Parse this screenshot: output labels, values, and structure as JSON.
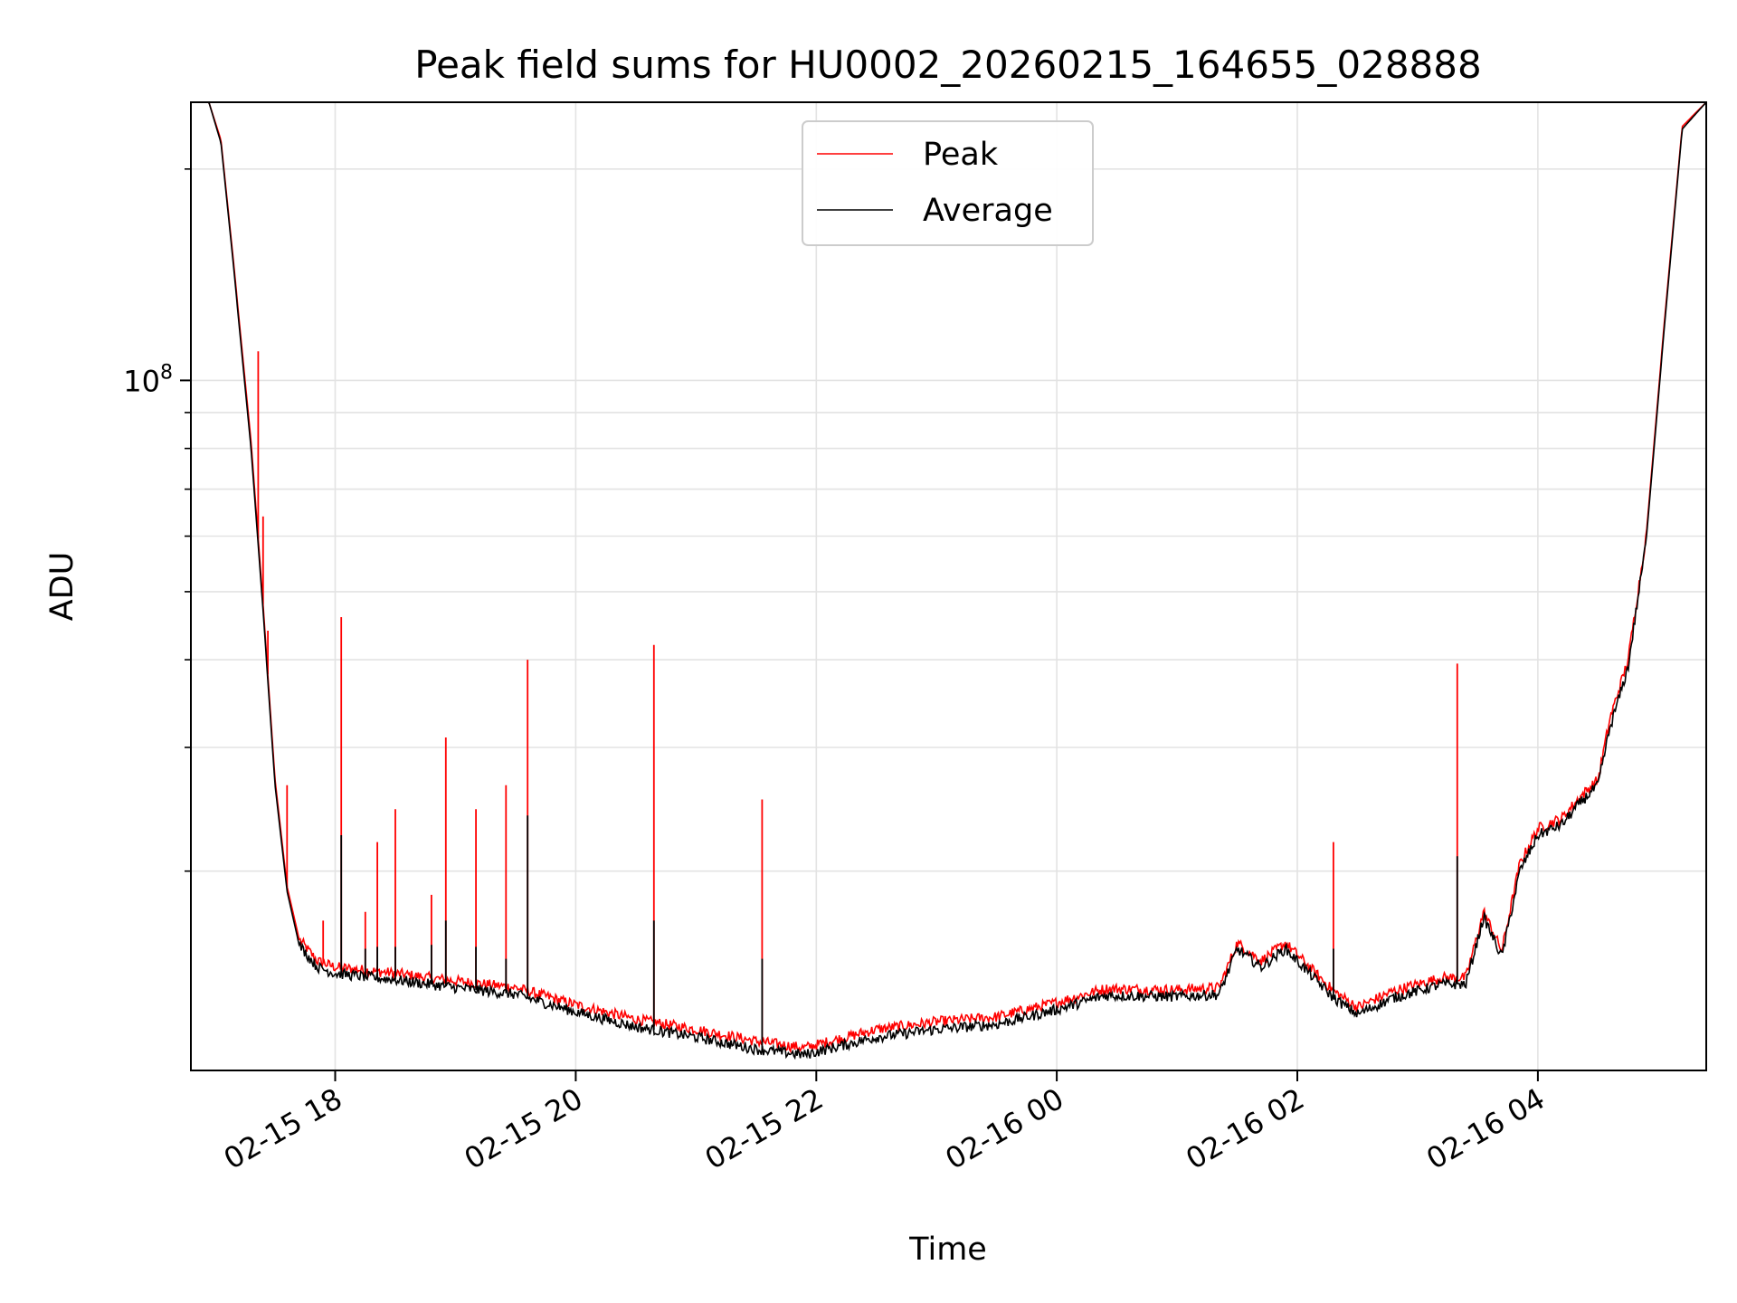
{
  "chart_data": {
    "type": "line",
    "title": "Peak field sums for HU0002_20260215_164655_028888",
    "xlabel": "Time",
    "ylabel": "ADU",
    "yscale": "log",
    "x_units": "hours since 2026-02-15 00:00",
    "xlim": [
      16.8,
      29.4
    ],
    "ylim": [
      10400000,
      249000000
    ],
    "ytick_major": [
      {
        "value": 100000000,
        "base": "10",
        "exp": "8"
      }
    ],
    "ytick_minor": [
      20000000,
      30000000,
      40000000,
      50000000,
      60000000,
      70000000,
      80000000,
      90000000,
      200000000
    ],
    "xticks": [
      {
        "value": 18,
        "label": "02-15 18"
      },
      {
        "value": 20,
        "label": "02-15 20"
      },
      {
        "value": 22,
        "label": "02-15 22"
      },
      {
        "value": 24,
        "label": "02-16 00"
      },
      {
        "value": 26,
        "label": "02-16 02"
      },
      {
        "value": 28,
        "label": "02-16 04"
      }
    ],
    "grid": true,
    "legend": {
      "position": "top-center"
    },
    "series": [
      {
        "name": "Peak",
        "color": "#ff0000",
        "baseline": [
          [
            16.8,
            249000000
          ],
          [
            16.95,
            249000000
          ],
          [
            17.05,
            220000000
          ],
          [
            17.15,
            150000000
          ],
          [
            17.3,
            82000000
          ],
          [
            17.4,
            48000000
          ],
          [
            17.5,
            27000000
          ],
          [
            17.6,
            19000000
          ],
          [
            17.7,
            16000000
          ],
          [
            17.85,
            14900000
          ],
          [
            18.0,
            14600000
          ],
          [
            18.5,
            14300000
          ],
          [
            19.0,
            13950000
          ],
          [
            19.5,
            13650000
          ],
          [
            20.0,
            12900000
          ],
          [
            20.5,
            12300000
          ],
          [
            21.0,
            11900000
          ],
          [
            21.5,
            11450000
          ],
          [
            21.9,
            11200000
          ],
          [
            22.5,
            11900000
          ],
          [
            23.0,
            12200000
          ],
          [
            23.5,
            12400000
          ],
          [
            24.0,
            13000000
          ],
          [
            24.4,
            13600000
          ],
          [
            25.0,
            13550000
          ],
          [
            25.35,
            13650000
          ],
          [
            25.5,
            15800000
          ],
          [
            25.7,
            14900000
          ],
          [
            25.9,
            15800000
          ],
          [
            26.05,
            14900000
          ],
          [
            26.3,
            13500000
          ],
          [
            26.5,
            12800000
          ],
          [
            26.8,
            13500000
          ],
          [
            27.2,
            14100000
          ],
          [
            27.4,
            14100000
          ],
          [
            27.55,
            17500000
          ],
          [
            27.7,
            15400000
          ],
          [
            27.85,
            20500000
          ],
          [
            28.0,
            23000000
          ],
          [
            28.2,
            23800000
          ],
          [
            28.35,
            25500000
          ],
          [
            28.5,
            27000000
          ],
          [
            28.6,
            33000000
          ],
          [
            28.75,
            40000000
          ],
          [
            28.9,
            60000000
          ],
          [
            29.05,
            120000000
          ],
          [
            29.2,
            230000000
          ],
          [
            29.4,
            249000000
          ]
        ],
        "spikes": [
          [
            17.36,
            110000000
          ],
          [
            17.4,
            64000000
          ],
          [
            17.44,
            44000000
          ],
          [
            17.6,
            26500000
          ],
          [
            17.9,
            17000000
          ],
          [
            18.05,
            46000000
          ],
          [
            18.25,
            17500000
          ],
          [
            18.35,
            22000000
          ],
          [
            18.5,
            24500000
          ],
          [
            18.8,
            18500000
          ],
          [
            18.92,
            31000000
          ],
          [
            19.17,
            24500000
          ],
          [
            19.42,
            26500000
          ],
          [
            19.6,
            40000000
          ],
          [
            20.65,
            42000000
          ],
          [
            21.55,
            25300000
          ],
          [
            26.3,
            22000000
          ],
          [
            27.33,
            39500000
          ]
        ]
      },
      {
        "name": "Average",
        "color": "#000000",
        "baseline": [
          [
            16.8,
            249000000
          ],
          [
            16.95,
            249000000
          ],
          [
            17.05,
            218000000
          ],
          [
            17.15,
            148000000
          ],
          [
            17.3,
            80000000
          ],
          [
            17.4,
            47000000
          ],
          [
            17.5,
            26500000
          ],
          [
            17.6,
            18700000
          ],
          [
            17.7,
            15700000
          ],
          [
            17.85,
            14600000
          ],
          [
            18.0,
            14300000
          ],
          [
            18.5,
            14000000
          ],
          [
            19.0,
            13650000
          ],
          [
            19.5,
            13350000
          ],
          [
            20.0,
            12600000
          ],
          [
            20.5,
            12000000
          ],
          [
            21.0,
            11600000
          ],
          [
            21.5,
            11150000
          ],
          [
            21.9,
            10950000
          ],
          [
            22.5,
            11600000
          ],
          [
            23.0,
            11900000
          ],
          [
            23.5,
            12100000
          ],
          [
            24.0,
            12700000
          ],
          [
            24.4,
            13300000
          ],
          [
            25.0,
            13250000
          ],
          [
            25.35,
            13350000
          ],
          [
            25.5,
            15500000
          ],
          [
            25.7,
            14600000
          ],
          [
            25.9,
            15500000
          ],
          [
            26.05,
            14600000
          ],
          [
            26.3,
            13200000
          ],
          [
            26.5,
            12500000
          ],
          [
            26.8,
            13200000
          ],
          [
            27.2,
            13800000
          ],
          [
            27.4,
            13800000
          ],
          [
            27.55,
            17200000
          ],
          [
            27.7,
            15100000
          ],
          [
            27.85,
            20000000
          ],
          [
            28.0,
            22500000
          ],
          [
            28.2,
            23300000
          ],
          [
            28.35,
            25000000
          ],
          [
            28.5,
            26500000
          ],
          [
            28.6,
            32000000
          ],
          [
            28.75,
            39000000
          ],
          [
            28.9,
            59000000
          ],
          [
            29.05,
            118000000
          ],
          [
            29.2,
            228000000
          ],
          [
            29.4,
            249000000
          ]
        ],
        "spikes": [
          [
            18.05,
            22500000
          ],
          [
            18.25,
            15500000
          ],
          [
            18.35,
            15600000
          ],
          [
            18.5,
            15600000
          ],
          [
            18.8,
            15700000
          ],
          [
            18.92,
            17000000
          ],
          [
            19.17,
            15600000
          ],
          [
            19.42,
            15000000
          ],
          [
            19.6,
            24000000
          ],
          [
            20.65,
            17000000
          ],
          [
            21.55,
            15000000
          ],
          [
            26.3,
            15500000
          ],
          [
            27.33,
            21000000
          ]
        ]
      }
    ]
  }
}
